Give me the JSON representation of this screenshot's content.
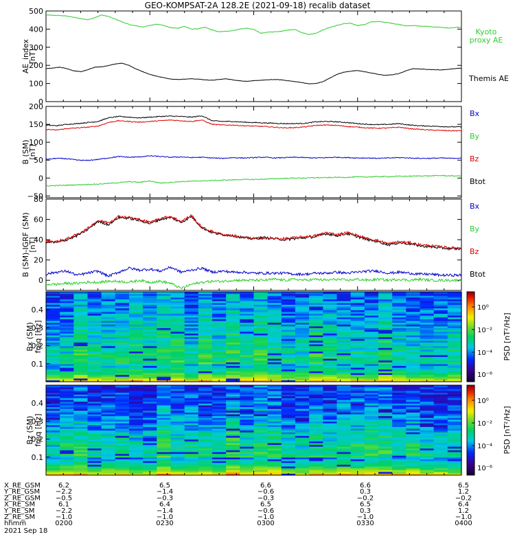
{
  "title": "GEO-KOMPSAT-2A 128.2E (2021-09-18) recalib dataset",
  "colors": {
    "black": "#000000",
    "green": "#2ecc2e",
    "blue": "#0000cc",
    "red": "#dd0000"
  },
  "chart_data": [
    {
      "type": "line",
      "panel": "ae",
      "ylabel": [
        "AE_index",
        "[nT]"
      ],
      "ylim": [
        0,
        500
      ],
      "yticks": [
        0,
        100,
        200,
        300,
        400,
        500
      ],
      "x": [
        0,
        2,
        4,
        6,
        8,
        10,
        12,
        14,
        16,
        18,
        20,
        22,
        24,
        26,
        28,
        30,
        32,
        34,
        36,
        38,
        40,
        42,
        44,
        46,
        48,
        50,
        52,
        54,
        56,
        58,
        60,
        62,
        64,
        66,
        68,
        70,
        72,
        74,
        76,
        78,
        80,
        82,
        84,
        86,
        88,
        90,
        92,
        94,
        96,
        98,
        100,
        102,
        104,
        106,
        108,
        110,
        112,
        114,
        116,
        118,
        120
      ],
      "series": [
        {
          "name": "Kyoto proxy AE",
          "color": "green",
          "label": [
            "Kyoto",
            "proxy AE"
          ],
          "values": [
            478,
            476,
            475,
            472,
            465,
            458,
            452,
            462,
            478,
            470,
            455,
            440,
            425,
            418,
            412,
            420,
            428,
            420,
            408,
            405,
            415,
            400,
            402,
            410,
            395,
            385,
            388,
            392,
            400,
            405,
            398,
            378,
            382,
            385,
            388,
            395,
            398,
            380,
            370,
            378,
            395,
            410,
            420,
            430,
            432,
            420,
            425,
            440,
            442,
            438,
            432,
            425,
            418,
            420,
            416,
            415,
            412,
            410,
            406,
            408,
            410
          ]
        },
        {
          "name": "Themis AE",
          "color": "black",
          "label": [
            "Themis AE"
          ],
          "values": [
            182,
            185,
            190,
            182,
            170,
            165,
            175,
            190,
            192,
            198,
            208,
            212,
            200,
            180,
            165,
            150,
            140,
            132,
            125,
            122,
            124,
            126,
            124,
            120,
            118,
            122,
            126,
            120,
            115,
            112,
            115,
            118,
            120,
            122,
            120,
            115,
            110,
            105,
            98,
            100,
            110,
            130,
            150,
            162,
            168,
            172,
            165,
            158,
            150,
            145,
            148,
            155,
            170,
            182,
            180,
            178,
            176,
            175,
            178,
            182,
            185
          ]
        }
      ]
    },
    {
      "type": "line",
      "panel": "b_sm",
      "ylabel": [
        "B (SM)",
        "[nT]"
      ],
      "ylim": [
        -55,
        200
      ],
      "yticks": [
        -50,
        0,
        50,
        100,
        150,
        200
      ],
      "x": [
        0,
        3,
        6,
        9,
        12,
        15,
        18,
        21,
        24,
        27,
        30,
        33,
        36,
        39,
        42,
        45,
        48,
        51,
        54,
        57,
        60,
        63,
        66,
        69,
        72,
        75,
        78,
        81,
        84,
        87,
        90,
        93,
        96,
        99,
        102,
        105,
        108,
        111,
        114,
        117,
        120
      ],
      "series": [
        {
          "name": "Btot",
          "color": "black",
          "values": [
            148,
            146,
            150,
            152,
            155,
            158,
            168,
            172,
            170,
            168,
            170,
            172,
            173,
            172,
            170,
            174,
            160,
            158,
            158,
            156,
            155,
            154,
            153,
            152,
            152,
            153,
            157,
            158,
            157,
            155,
            152,
            150,
            149,
            150,
            152,
            148,
            146,
            145,
            144,
            143,
            143
          ]
        },
        {
          "name": "Bz",
          "color": "red",
          "values": [
            136,
            134,
            138,
            140,
            142,
            145,
            155,
            160,
            158,
            156,
            158,
            160,
            162,
            160,
            158,
            162,
            150,
            148,
            148,
            146,
            145,
            144,
            142,
            140,
            141,
            143,
            147,
            148,
            147,
            144,
            142,
            140,
            139,
            140,
            142,
            138,
            136,
            134,
            133,
            132,
            132
          ]
        },
        {
          "name": "Bx",
          "color": "blue",
          "values": [
            52,
            55,
            54,
            50,
            49,
            52,
            56,
            60,
            58,
            59,
            62,
            60,
            58,
            59,
            57,
            58,
            56,
            55,
            57,
            56,
            57,
            58,
            56,
            57,
            58,
            57,
            56,
            57,
            58,
            57,
            56,
            56,
            55,
            56,
            57,
            56,
            55,
            55,
            56,
            55,
            56
          ]
        },
        {
          "name": "By",
          "color": "green",
          "values": [
            -22,
            -21,
            -20,
            -19,
            -18,
            -17,
            -15,
            -13,
            -10,
            -12,
            -8,
            -14,
            -12,
            -10,
            -9,
            -8,
            -7,
            -6,
            -5,
            -4,
            -4,
            -3,
            -2,
            -1,
            0,
            0,
            1,
            1,
            2,
            2,
            3,
            3,
            4,
            4,
            5,
            5,
            6,
            6,
            7,
            6,
            6
          ]
        }
      ],
      "legend": [
        "Bx",
        "By",
        "Bz",
        "Btot"
      ]
    },
    {
      "type": "line",
      "panel": "b_minus_igrf",
      "ylabel": [
        "B (SM)-IGRF (SM)",
        "[nT]"
      ],
      "ylim": [
        -10,
        80
      ],
      "yticks": [
        0,
        20,
        40,
        60,
        80
      ],
      "x": [
        0,
        3,
        6,
        9,
        12,
        15,
        18,
        21,
        24,
        27,
        30,
        33,
        36,
        39,
        42,
        45,
        48,
        51,
        54,
        57,
        60,
        63,
        66,
        69,
        72,
        75,
        78,
        81,
        84,
        87,
        90,
        93,
        96,
        99,
        102,
        105,
        108,
        111,
        114,
        117,
        120
      ],
      "series": [
        {
          "name": "Btot",
          "color": "black",
          "values": [
            38,
            37,
            40,
            44,
            50,
            58,
            55,
            62,
            61,
            59,
            56,
            60,
            62,
            57,
            63,
            52,
            47,
            45,
            44,
            42,
            41,
            42,
            41,
            40,
            41,
            42,
            43,
            46,
            44,
            46,
            43,
            40,
            38,
            35,
            37,
            36,
            34,
            33,
            32,
            31,
            31
          ]
        },
        {
          "name": "Bz",
          "color": "red",
          "values": [
            39,
            38,
            41,
            45,
            51,
            59,
            57,
            63,
            62,
            60,
            57,
            61,
            63,
            58,
            64,
            52,
            48,
            45,
            44,
            42,
            41,
            42,
            41,
            41,
            42,
            43,
            44,
            47,
            45,
            47,
            44,
            41,
            39,
            36,
            38,
            37,
            35,
            34,
            33,
            32,
            32
          ]
        },
        {
          "name": "Bx",
          "color": "blue",
          "values": [
            6,
            8,
            9,
            5,
            7,
            9,
            4,
            8,
            12,
            10,
            11,
            9,
            13,
            8,
            10,
            12,
            8,
            9,
            8,
            8,
            7,
            7,
            7,
            7,
            6,
            6,
            7,
            7,
            8,
            7,
            8,
            9,
            9,
            7,
            8,
            7,
            6,
            6,
            5,
            5,
            5
          ]
        },
        {
          "name": "By",
          "color": "green",
          "values": [
            -4,
            -4,
            -3,
            -3,
            -2,
            -2,
            -1,
            -1,
            -2,
            0,
            -2,
            -1,
            -3,
            -8,
            -4,
            -2,
            -1,
            -1,
            0,
            0,
            0,
            0,
            1,
            0,
            1,
            0,
            1,
            0,
            1,
            0,
            1,
            0,
            1,
            0,
            1,
            0,
            1,
            0,
            0,
            0,
            0
          ]
        }
      ],
      "legend": [
        "Bx",
        "By",
        "Bz",
        "Btot"
      ]
    },
    {
      "type": "heatmap",
      "panel": "bx_psd",
      "ylabel": [
        "Bx (SM)",
        "freq [Hz]"
      ],
      "ylim": [
        0,
        0.5
      ],
      "yticks": [
        0.1,
        0.2,
        0.3,
        0.4
      ],
      "colorbar_label": "PSD [nT²/Hz]",
      "colorbar_ticks": [
        "10⁰",
        "10⁻²",
        "10⁻⁴",
        "10⁻⁶"
      ]
    },
    {
      "type": "heatmap",
      "panel": "bz_psd",
      "ylabel": [
        "Bz (SM)",
        "freq [Hz]"
      ],
      "ylim": [
        0,
        0.5
      ],
      "yticks": [
        0.1,
        0.2,
        0.3,
        0.4
      ],
      "colorbar_label": "PSD [nT²/Hz]",
      "colorbar_ticks": [
        "10⁰",
        "10⁻²",
        "10⁻⁴",
        "10⁻⁶"
      ]
    }
  ],
  "ephemeris": {
    "rows": [
      {
        "label": "X_RE_GSM",
        "values": [
          "6.2",
          "6.5",
          "6.6",
          "6.6",
          "6.5"
        ]
      },
      {
        "label": "Y_RE_GSM",
        "values": [
          "-2.2",
          "-1.4",
          "-0.6",
          "0.3",
          "1.2"
        ]
      },
      {
        "label": "Z_RE_GSM",
        "values": [
          "-0.5",
          "-0.3",
          "-0.3",
          "-0.2",
          "-0.2"
        ]
      },
      {
        "label": "X_RE_SM",
        "values": [
          "6.1",
          "6.4",
          "6.5",
          "6.5",
          "6.4"
        ]
      },
      {
        "label": "Y_RE_SM",
        "values": [
          "-2.2",
          "-1.4",
          "-0.6",
          "0.3",
          "1.2"
        ]
      },
      {
        "label": "Z_RE_SM",
        "values": [
          "-1.0",
          "-1.0",
          "-1.0",
          "-1.0",
          "-1.0"
        ]
      },
      {
        "label": "hhmm",
        "values": [
          "0200",
          "0230",
          "0300",
          "0330",
          "0400"
        ]
      }
    ],
    "date": "2021 Sep 18"
  }
}
